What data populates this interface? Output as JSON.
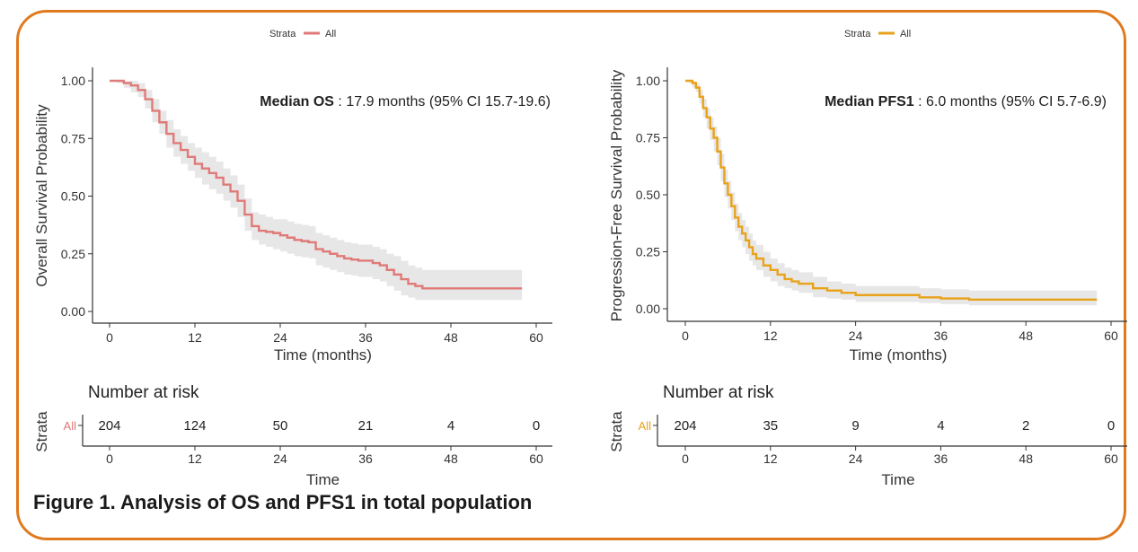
{
  "figure_caption": "Figure 1. Analysis of OS and PFS1 in total population",
  "colors": {
    "frame": "#e07a1f",
    "os_curve": "#e07a78",
    "pfs_curve": "#e8a21b",
    "ci_band": "#e3e3e3",
    "axis": "#333333"
  },
  "chart_data": [
    {
      "type": "line",
      "subtype": "kaplan-meier",
      "legend": {
        "title": "Strata",
        "entries": [
          "All"
        ],
        "placement": "top-center"
      },
      "annotation": {
        "bold": "Median OS",
        "rest": " : 17.9 months (95% CI 15.7-19.6)"
      },
      "ylabel": "Overall Survival Probability",
      "xlabel": "Time (months)",
      "xlim": [
        0,
        60
      ],
      "ylim": [
        0,
        1
      ],
      "x_ticks": [
        "0",
        "12",
        "24",
        "36",
        "48",
        "60"
      ],
      "y_ticks": [
        "0.00",
        "0.25",
        "0.50",
        "0.75",
        "1.00"
      ],
      "x_tick_values": [
        0,
        12,
        24,
        36,
        48,
        60
      ],
      "y_tick_values": [
        0,
        0.25,
        0.5,
        0.75,
        1
      ],
      "series": [
        {
          "name": "All",
          "x": [
            0,
            1,
            2,
            3,
            4,
            5,
            6,
            7,
            8,
            9,
            10,
            11,
            12,
            13,
            14,
            15,
            16,
            17,
            18,
            19,
            20,
            21,
            22,
            23,
            24,
            25,
            26,
            27,
            28,
            29,
            30,
            31,
            32,
            33,
            34,
            35,
            36,
            37,
            38,
            39,
            40,
            41,
            42,
            43,
            44,
            45,
            50,
            55,
            58
          ],
          "y": [
            1.0,
            1.0,
            0.99,
            0.98,
            0.96,
            0.92,
            0.87,
            0.82,
            0.77,
            0.73,
            0.7,
            0.67,
            0.64,
            0.62,
            0.6,
            0.58,
            0.55,
            0.52,
            0.48,
            0.42,
            0.37,
            0.35,
            0.345,
            0.34,
            0.33,
            0.32,
            0.31,
            0.305,
            0.3,
            0.27,
            0.26,
            0.25,
            0.24,
            0.23,
            0.225,
            0.22,
            0.22,
            0.21,
            0.2,
            0.18,
            0.16,
            0.14,
            0.12,
            0.11,
            0.1,
            0.1,
            0.1,
            0.1,
            0.1
          ],
          "lower": [
            1.0,
            0.99,
            0.97,
            0.95,
            0.93,
            0.88,
            0.82,
            0.77,
            0.71,
            0.67,
            0.64,
            0.61,
            0.58,
            0.55,
            0.53,
            0.51,
            0.48,
            0.45,
            0.41,
            0.35,
            0.31,
            0.29,
            0.28,
            0.27,
            0.26,
            0.25,
            0.24,
            0.235,
            0.23,
            0.2,
            0.19,
            0.18,
            0.17,
            0.16,
            0.155,
            0.15,
            0.15,
            0.14,
            0.13,
            0.11,
            0.09,
            0.07,
            0.06,
            0.05,
            0.05,
            0.05,
            0.05,
            0.05,
            0.05
          ],
          "upper": [
            1.0,
            1.0,
            1.0,
            1.0,
            0.99,
            0.96,
            0.92,
            0.87,
            0.83,
            0.79,
            0.76,
            0.73,
            0.71,
            0.69,
            0.67,
            0.65,
            0.62,
            0.59,
            0.55,
            0.49,
            0.43,
            0.42,
            0.41,
            0.4,
            0.4,
            0.39,
            0.38,
            0.375,
            0.37,
            0.34,
            0.33,
            0.32,
            0.31,
            0.3,
            0.295,
            0.29,
            0.29,
            0.28,
            0.27,
            0.25,
            0.24,
            0.22,
            0.2,
            0.19,
            0.18,
            0.18,
            0.18,
            0.18,
            0.18
          ]
        }
      ],
      "risk_table": {
        "title": "Number at risk",
        "ylabel": "Strata",
        "row_label": "All",
        "times": [
          0,
          12,
          24,
          36,
          48,
          60
        ],
        "counts": [
          "204",
          "124",
          "50",
          "21",
          "4",
          "0"
        ],
        "xlabel": "Time",
        "x_ticks": [
          "0",
          "12",
          "24",
          "36",
          "48",
          "60"
        ]
      }
    },
    {
      "type": "line",
      "subtype": "kaplan-meier",
      "legend": {
        "title": "Strata",
        "entries": [
          "All"
        ],
        "placement": "top-center"
      },
      "annotation": {
        "bold": "Median PFS1",
        "rest": " : 6.0 months (95% CI 5.7-6.9)"
      },
      "ylabel": "Progression-Free Survival Probability",
      "xlabel": "Time (months)",
      "xlim": [
        0,
        60
      ],
      "ylim": [
        0,
        1
      ],
      "x_ticks": [
        "0",
        "12",
        "24",
        "36",
        "48",
        "60"
      ],
      "y_ticks": [
        "0.00",
        "0.25",
        "0.50",
        "0.75",
        "1.00"
      ],
      "x_tick_values": [
        0,
        12,
        24,
        36,
        48,
        60
      ],
      "y_tick_values": [
        0,
        0.25,
        0.5,
        0.75,
        1
      ],
      "series": [
        {
          "name": "All",
          "x": [
            0,
            0.5,
            1,
            1.5,
            2,
            2.5,
            3,
            3.5,
            4,
            4.5,
            5,
            5.5,
            6,
            6.5,
            7,
            7.5,
            8,
            8.5,
            9,
            9.5,
            10,
            11,
            12,
            13,
            14,
            15,
            16,
            18,
            20,
            22,
            24,
            27,
            30,
            33,
            36,
            39,
            40,
            45,
            50,
            55,
            58
          ],
          "y": [
            1.0,
            1.0,
            0.99,
            0.97,
            0.93,
            0.88,
            0.84,
            0.79,
            0.75,
            0.69,
            0.62,
            0.55,
            0.5,
            0.45,
            0.4,
            0.36,
            0.33,
            0.3,
            0.27,
            0.24,
            0.22,
            0.19,
            0.17,
            0.15,
            0.13,
            0.12,
            0.11,
            0.09,
            0.08,
            0.07,
            0.06,
            0.06,
            0.06,
            0.05,
            0.045,
            0.045,
            0.04,
            0.04,
            0.04,
            0.04,
            0.04
          ],
          "lower": [
            1.0,
            0.99,
            0.97,
            0.95,
            0.9,
            0.84,
            0.79,
            0.74,
            0.69,
            0.63,
            0.56,
            0.49,
            0.44,
            0.39,
            0.34,
            0.3,
            0.27,
            0.24,
            0.21,
            0.19,
            0.17,
            0.14,
            0.12,
            0.1,
            0.09,
            0.08,
            0.07,
            0.05,
            0.045,
            0.04,
            0.03,
            0.03,
            0.03,
            0.025,
            0.02,
            0.02,
            0.015,
            0.015,
            0.015,
            0.015,
            0.015
          ],
          "upper": [
            1.0,
            1.0,
            1.0,
            0.99,
            0.96,
            0.92,
            0.88,
            0.84,
            0.8,
            0.75,
            0.68,
            0.61,
            0.56,
            0.51,
            0.46,
            0.42,
            0.39,
            0.36,
            0.33,
            0.3,
            0.28,
            0.25,
            0.22,
            0.2,
            0.18,
            0.17,
            0.16,
            0.14,
            0.12,
            0.11,
            0.1,
            0.1,
            0.1,
            0.09,
            0.085,
            0.085,
            0.08,
            0.08,
            0.08,
            0.08,
            0.08
          ]
        }
      ],
      "risk_table": {
        "title": "Number at risk",
        "ylabel": "Strata",
        "row_label": "All",
        "times": [
          0,
          12,
          24,
          36,
          48,
          60
        ],
        "counts": [
          "204",
          "35",
          "9",
          "4",
          "2",
          "0"
        ],
        "xlabel": "Time",
        "x_ticks": [
          "0",
          "12",
          "24",
          "36",
          "48",
          "60"
        ]
      }
    }
  ]
}
